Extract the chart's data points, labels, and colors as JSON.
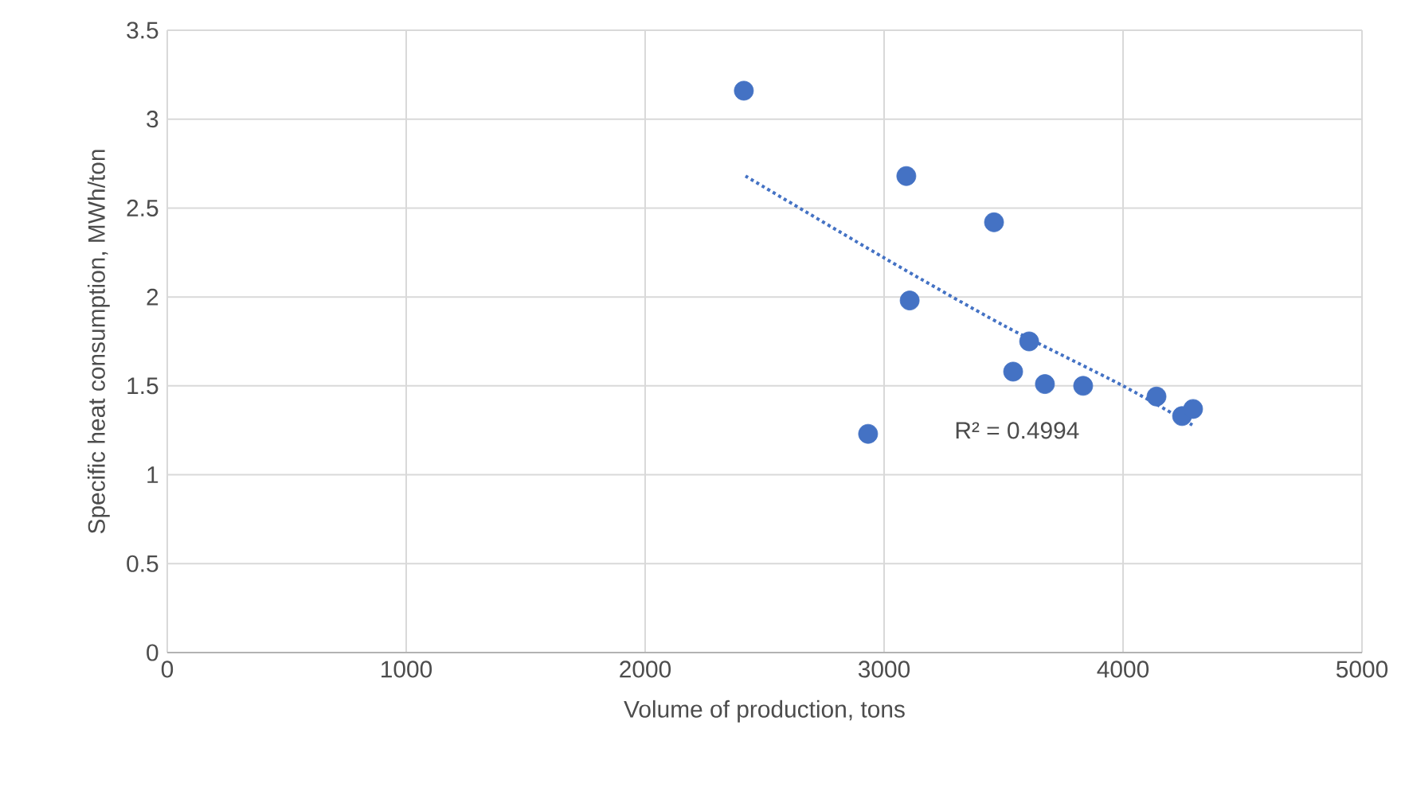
{
  "chart_data": {
    "type": "scatter",
    "xlabel": "Volume of production, tons",
    "ylabel": "Specific heat consumption, MWh/ton",
    "xlim": [
      0,
      5000
    ],
    "xticks": [
      0,
      1000,
      2000,
      3000,
      4000,
      5000
    ],
    "ylim": [
      0,
      3.5
    ],
    "yticks": [
      0,
      0.5,
      1,
      1.5,
      2,
      2.5,
      3,
      3.5
    ],
    "grid": true,
    "marker": "circle",
    "series": [
      {
        "color": "#4472c4",
        "x": [
          2413,
          3093,
          3460,
          3107,
          3607,
          3540,
          3673,
          3833,
          2933,
          4140,
          4247,
          4293
        ],
        "values": [
          3.16,
          2.68,
          2.42,
          1.98,
          1.75,
          1.58,
          1.51,
          1.5,
          1.23,
          1.44,
          1.33,
          1.37
        ]
      },
      {
        "type": "line",
        "marker": "none",
        "color": "#4472c4",
        "line_style": "dotted",
        "x": [
          2420,
          3000,
          3500,
          4000,
          4290
        ],
        "values": [
          2.68,
          2.22,
          1.84,
          1.5,
          1.28
        ]
      }
    ],
    "annotations": [
      "R² = 0.4994"
    ]
  }
}
